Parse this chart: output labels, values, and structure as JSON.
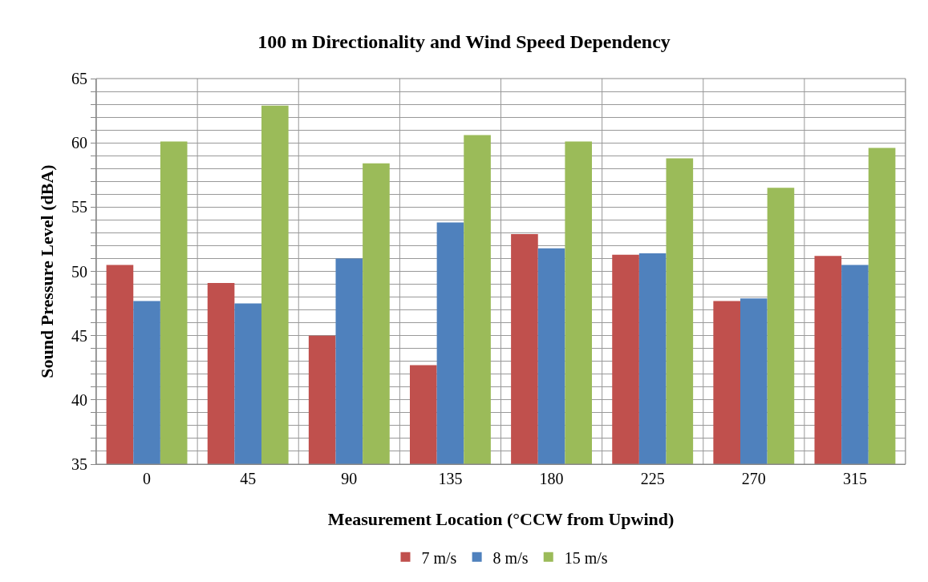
{
  "chart_data": {
    "type": "bar",
    "title": "100 m Directionality and Wind Speed Dependency",
    "xlabel": "Measurement Location (°CCW from Upwind)",
    "ylabel": "Sound Pressure Level (dBA)",
    "categories": [
      "0",
      "45",
      "90",
      "135",
      "180",
      "225",
      "270",
      "315"
    ],
    "series": [
      {
        "name": "7 m/s",
        "color": "#c0504d",
        "values": [
          50.5,
          49.1,
          45.0,
          42.7,
          52.9,
          51.3,
          47.7,
          51.2
        ]
      },
      {
        "name": "8 m/s",
        "color": "#4f81bd",
        "values": [
          47.7,
          47.5,
          51.0,
          53.8,
          51.8,
          51.4,
          47.9,
          50.5
        ]
      },
      {
        "name": "15 m/s",
        "color": "#9bbb59",
        "values": [
          60.1,
          62.9,
          58.4,
          60.6,
          60.1,
          58.8,
          56.5,
          59.6
        ]
      }
    ],
    "ylim": [
      35,
      65
    ],
    "yticks": [
      35,
      {
        "value": 36,
        "label": null
      },
      {
        "value": 37,
        "label": null
      },
      {
        "value": 38,
        "label": null
      },
      {
        "value": 39,
        "label": null
      },
      40,
      {
        "value": 41,
        "label": null
      },
      {
        "value": 42,
        "label": null
      },
      {
        "value": 43,
        "label": null
      },
      {
        "value": 44,
        "label": null
      },
      45,
      {
        "value": 46,
        "label": null
      },
      {
        "value": 47,
        "label": null
      },
      {
        "value": 48,
        "label": null
      },
      {
        "value": 49,
        "label": null
      },
      50,
      {
        "value": 51,
        "label": null
      },
      {
        "value": 52,
        "label": null
      },
      {
        "value": 53,
        "label": null
      },
      {
        "value": 54,
        "label": null
      },
      55,
      {
        "value": 56,
        "label": null
      },
      {
        "value": 57,
        "label": null
      },
      {
        "value": 58,
        "label": null
      },
      {
        "value": 59,
        "label": null
      },
      60,
      {
        "value": 61,
        "label": null
      },
      {
        "value": 62,
        "label": null
      },
      {
        "value": 63,
        "label": null
      },
      {
        "value": 64,
        "label": null
      },
      65
    ],
    "grid": true,
    "legend": "bottom"
  }
}
